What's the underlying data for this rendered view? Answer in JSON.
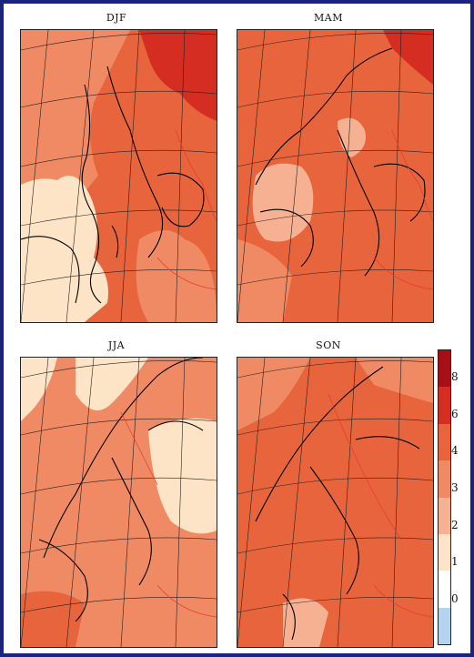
{
  "panels": [
    {
      "id": "djf",
      "title": "DJF"
    },
    {
      "id": "mam",
      "title": "MAM"
    },
    {
      "id": "jja",
      "title": "JJA"
    },
    {
      "id": "son",
      "title": "SON"
    }
  ],
  "colorbar": {
    "ticks": [
      "8",
      "6",
      "4",
      "3",
      "2",
      "1",
      "0"
    ],
    "bins": [
      {
        "range": "<0",
        "color": "#b3d4ee"
      },
      {
        "range": "0-1",
        "color": "#ffffff"
      },
      {
        "range": "1-2",
        "color": "#fde4c6"
      },
      {
        "range": "2-3",
        "color": "#f6b193"
      },
      {
        "range": "3-4",
        "color": "#ef8a64"
      },
      {
        "range": "4-6",
        "color": "#e8643c"
      },
      {
        "range": "6-8",
        "color": "#d62d22"
      },
      {
        "range": ">8",
        "color": "#a50f15"
      }
    ]
  }
}
